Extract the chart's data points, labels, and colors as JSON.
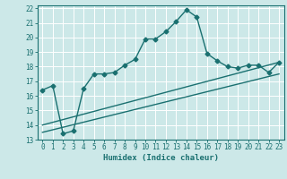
{
  "title": "",
  "xlabel": "Humidex (Indice chaleur)",
  "ylabel": "",
  "bg_color": "#cce8e8",
  "grid_color": "#ffffff",
  "line_color": "#1a7070",
  "xlim": [
    -0.5,
    23.5
  ],
  "ylim": [
    13,
    22.2
  ],
  "x_ticks": [
    0,
    1,
    2,
    3,
    4,
    5,
    6,
    7,
    8,
    9,
    10,
    11,
    12,
    13,
    14,
    15,
    16,
    17,
    18,
    19,
    20,
    21,
    22,
    23
  ],
  "y_ticks": [
    13,
    14,
    15,
    16,
    17,
    18,
    19,
    20,
    21,
    22
  ],
  "curve1_x": [
    0,
    1,
    2,
    3,
    4,
    5,
    6,
    7,
    8,
    9,
    10,
    11,
    12,
    13,
    14,
    15,
    16,
    17,
    18,
    19,
    20,
    21,
    22,
    23
  ],
  "curve1_y": [
    16.4,
    16.7,
    13.4,
    13.6,
    16.5,
    17.5,
    17.5,
    17.6,
    18.1,
    18.5,
    19.9,
    19.9,
    20.4,
    21.1,
    21.9,
    21.4,
    18.9,
    18.4,
    18.0,
    17.9,
    18.1,
    18.1,
    17.6,
    18.3
  ],
  "curve2_x": [
    0,
    23
  ],
  "curve2_y": [
    13.5,
    17.5
  ],
  "curve3_x": [
    0,
    23
  ],
  "curve3_y": [
    14.0,
    18.3
  ],
  "marker": "D",
  "marker_size": 2.5,
  "linewidth": 1.0
}
